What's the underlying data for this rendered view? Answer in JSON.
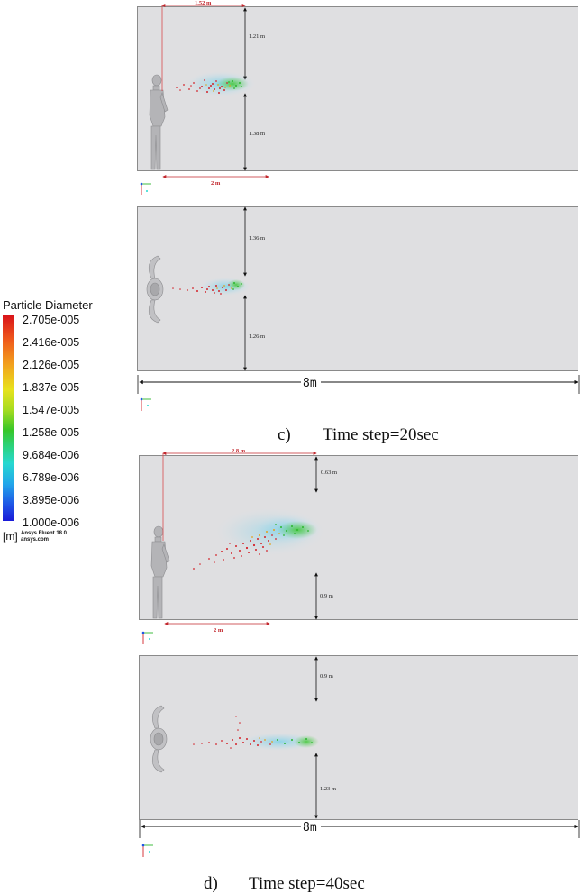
{
  "legend": {
    "title": "Particle Diameter",
    "ticks": [
      "2.705e-005",
      "2.416e-005",
      "2.126e-005",
      "1.837e-005",
      "1.547e-005",
      "1.258e-005",
      "9.684e-006",
      "6.789e-006",
      "3.895e-006",
      "1.000e-006"
    ],
    "unit": "[m]",
    "software": "Ansys Fluent 18.0",
    "site": "ansys.com",
    "colors": {
      "max": "#d9141a",
      "mid": "#37c629",
      "min": "#1a1ad8"
    }
  },
  "panels": {
    "c_side": {
      "top_gap": "1.21 m",
      "bottom_gap": "1.38 m",
      "distance_top": "1.52 m",
      "distance_bottom": "2 m"
    },
    "c_top": {
      "top_gap": "1.36 m",
      "bottom_gap": "1.26 m",
      "length": "8m"
    },
    "d_side": {
      "top_gap": "0.63 m",
      "bottom_gap": "0.9 m",
      "distance_top": "2.8 m",
      "distance_bottom": "2 m"
    },
    "d_top": {
      "top_gap": "0.9 m",
      "bottom_gap": "1.23 m",
      "length": "8m"
    }
  },
  "captions": {
    "c_letter": "c)",
    "c_text": "Time step=20sec",
    "d_letter": "d)",
    "d_text": "Time step=40sec"
  }
}
